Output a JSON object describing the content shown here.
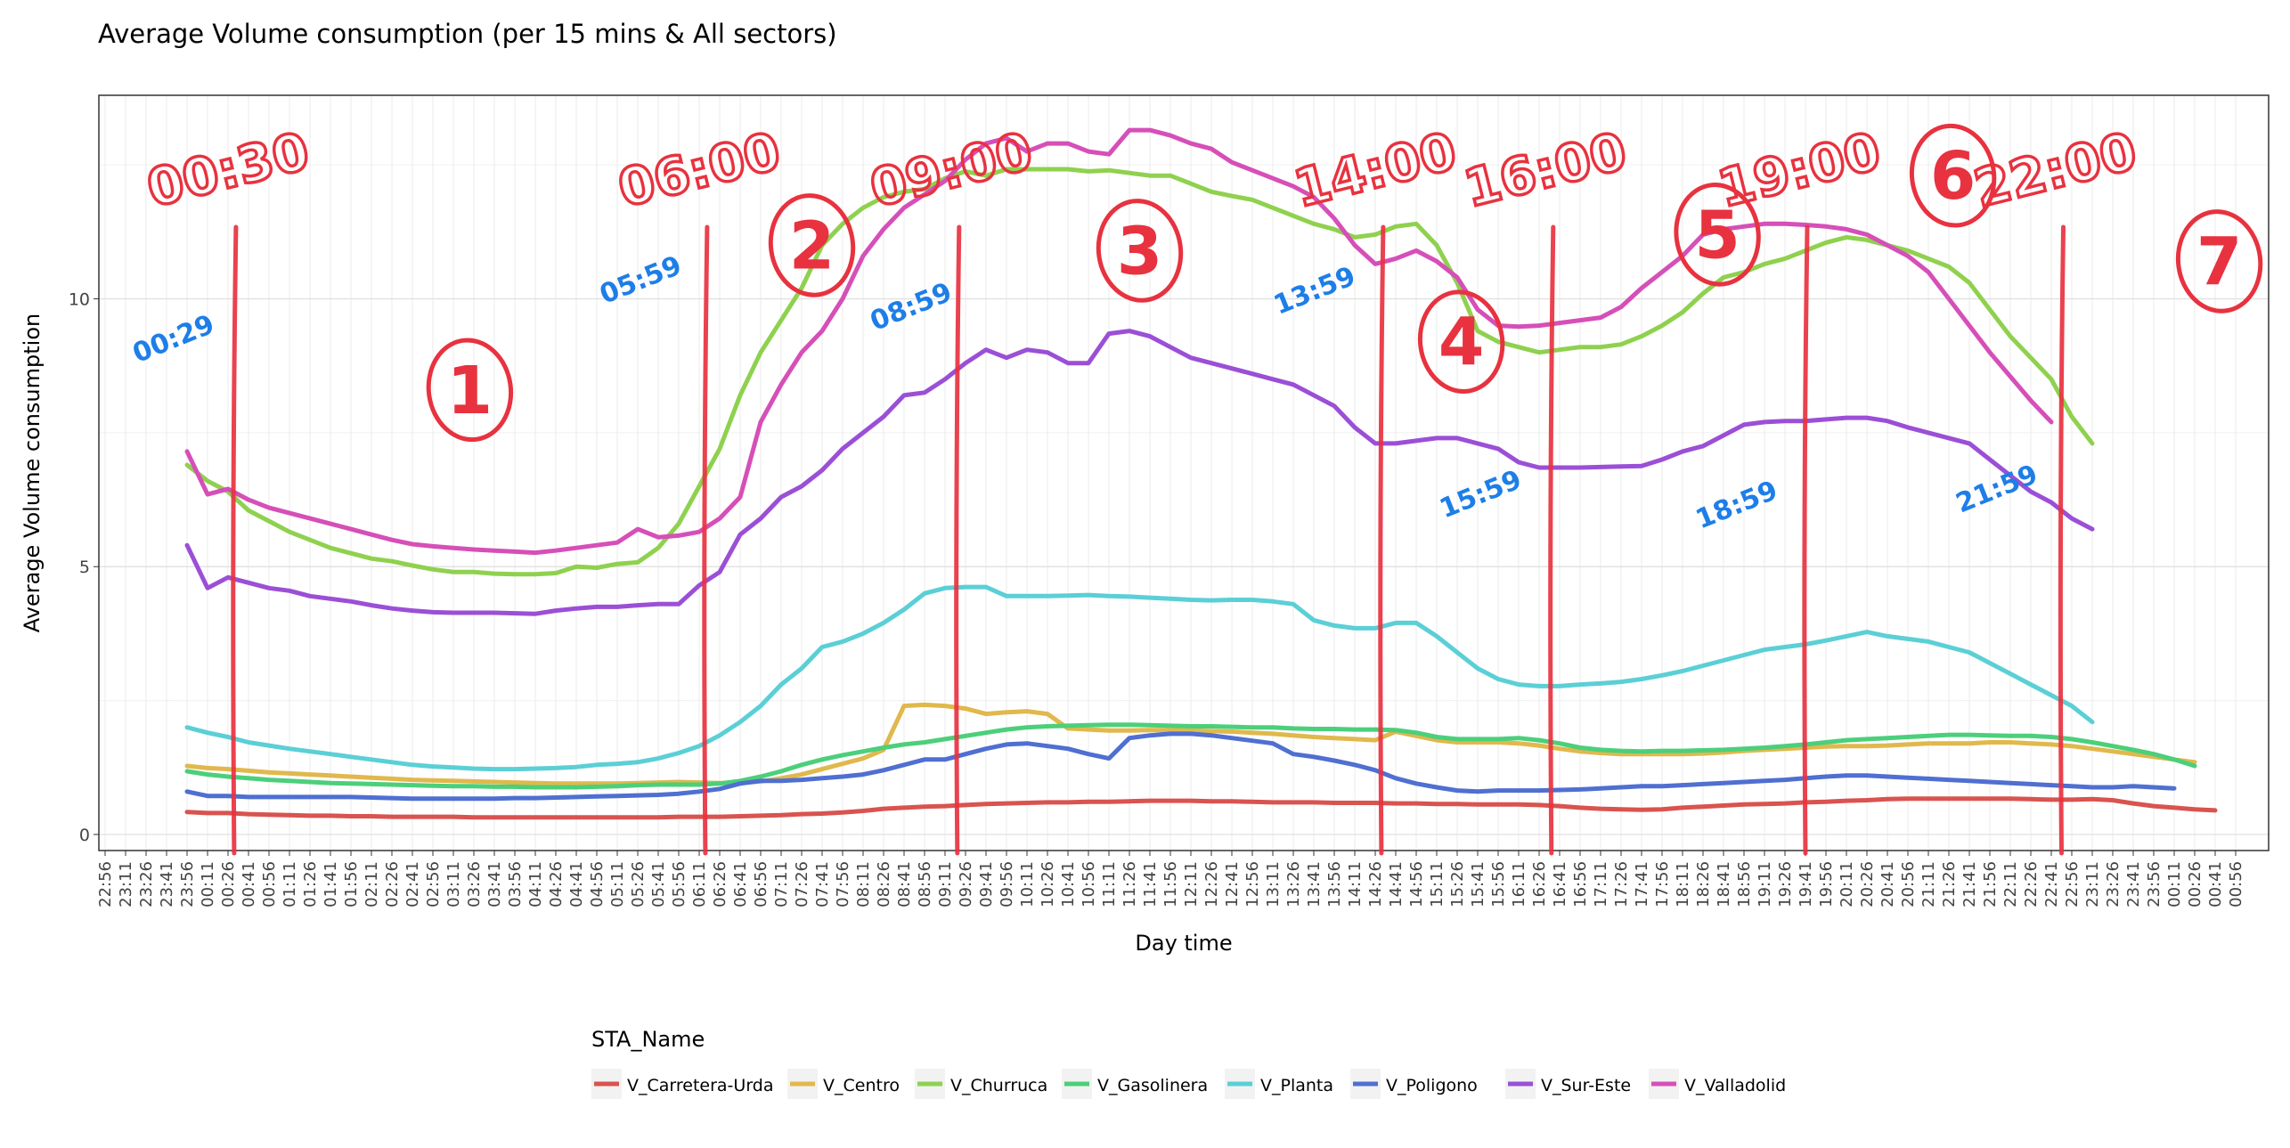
{
  "chart_data": {
    "type": "line",
    "title": "Average Volume consumption (per 15 mins & All sectors)",
    "xlabel": "Day time",
    "ylabel": "Average Volume consumption",
    "ylim": [
      -0.3,
      13.8
    ],
    "yticks": [
      0,
      5,
      10
    ],
    "grid": true,
    "legend_title": "STA_Name",
    "legend_position": "bottom",
    "x_ticks": [
      "22:56",
      "23:11",
      "23:26",
      "23:41",
      "23:56",
      "00:11",
      "00:26",
      "00:41",
      "00:56",
      "01:11",
      "01:26",
      "01:41",
      "01:56",
      "02:11",
      "02:26",
      "02:41",
      "02:56",
      "03:11",
      "03:26",
      "03:41",
      "03:56",
      "04:11",
      "04:26",
      "04:41",
      "04:56",
      "05:11",
      "05:26",
      "05:41",
      "05:56",
      "06:11",
      "06:26",
      "06:41",
      "06:56",
      "07:11",
      "07:26",
      "07:41",
      "07:56",
      "08:11",
      "08:26",
      "08:41",
      "08:56",
      "09:11",
      "09:26",
      "09:41",
      "09:56",
      "10:11",
      "10:26",
      "10:41",
      "10:56",
      "11:11",
      "11:26",
      "11:41",
      "11:56",
      "12:11",
      "12:26",
      "12:41",
      "12:56",
      "13:11",
      "13:26",
      "13:41",
      "13:56",
      "14:11",
      "14:26",
      "14:41",
      "14:56",
      "15:11",
      "15:26",
      "15:41",
      "15:56",
      "16:11",
      "16:26",
      "16:41",
      "16:56",
      "17:11",
      "17:26",
      "17:41",
      "17:56",
      "18:11",
      "18:26",
      "18:41",
      "18:56",
      "19:11",
      "19:26",
      "19:41",
      "19:56",
      "20:11",
      "20:26",
      "20:41",
      "20:56",
      "21:11",
      "21:26",
      "21:41",
      "21:56",
      "22:11",
      "22:26",
      "22:41",
      "22:56",
      "23:11",
      "23:26",
      "23:41",
      "23:56",
      "00:11",
      "00:26",
      "00:41",
      "00:56"
    ],
    "series_start_index": 4,
    "series": [
      {
        "name": "V_Carretera-Urda",
        "color": "#d9534f",
        "values": [
          0.42,
          0.4,
          0.4,
          0.38,
          0.37,
          0.36,
          0.35,
          0.35,
          0.34,
          0.34,
          0.33,
          0.33,
          0.33,
          0.33,
          0.32,
          0.32,
          0.32,
          0.32,
          0.32,
          0.32,
          0.32,
          0.32,
          0.32,
          0.32,
          0.33,
          0.33,
          0.33,
          0.34,
          0.35,
          0.36,
          0.38,
          0.39,
          0.41,
          0.44,
          0.48,
          0.5,
          0.52,
          0.53,
          0.55,
          0.57,
          0.58,
          0.59,
          0.6,
          0.6,
          0.61,
          0.61,
          0.62,
          0.63,
          0.63,
          0.63,
          0.62,
          0.62,
          0.61,
          0.6,
          0.6,
          0.6,
          0.59,
          0.59,
          0.59,
          0.58,
          0.58,
          0.57,
          0.57,
          0.56,
          0.56,
          0.56,
          0.55,
          0.53,
          0.5,
          0.48,
          0.47,
          0.46,
          0.47,
          0.5,
          0.52,
          0.54,
          0.56,
          0.57,
          0.58,
          0.6,
          0.61,
          0.63,
          0.64,
          0.66,
          0.67,
          0.67,
          0.67,
          0.67,
          0.67,
          0.67,
          0.66,
          0.65,
          0.65,
          0.66,
          0.64,
          0.58,
          0.53,
          0.5,
          0.47,
          0.45
        ]
      },
      {
        "name": "V_Centro",
        "color": "#e0b84c",
        "values": [
          1.28,
          1.24,
          1.22,
          1.19,
          1.16,
          1.14,
          1.12,
          1.1,
          1.08,
          1.06,
          1.04,
          1.02,
          1.01,
          1.0,
          0.99,
          0.98,
          0.97,
          0.96,
          0.95,
          0.95,
          0.95,
          0.95,
          0.96,
          0.97,
          0.98,
          0.97,
          0.96,
          0.96,
          0.99,
          1.05,
          1.12,
          1.22,
          1.32,
          1.42,
          1.58,
          2.4,
          2.42,
          2.4,
          2.35,
          2.25,
          2.28,
          2.3,
          2.25,
          1.98,
          1.96,
          1.94,
          1.94,
          1.95,
          1.95,
          1.94,
          1.93,
          1.92,
          1.9,
          1.88,
          1.85,
          1.82,
          1.8,
          1.78,
          1.76,
          1.92,
          1.84,
          1.76,
          1.72,
          1.72,
          1.72,
          1.7,
          1.66,
          1.6,
          1.55,
          1.52,
          1.5,
          1.5,
          1.5,
          1.5,
          1.51,
          1.53,
          1.56,
          1.58,
          1.6,
          1.62,
          1.64,
          1.65,
          1.65,
          1.66,
          1.68,
          1.7,
          1.7,
          1.7,
          1.72,
          1.72,
          1.7,
          1.68,
          1.65,
          1.6,
          1.55,
          1.5,
          1.45,
          1.4,
          1.35
        ]
      },
      {
        "name": "V_Churruca",
        "color": "#8fd14f",
        "values": [
          6.9,
          6.6,
          6.4,
          6.05,
          5.85,
          5.65,
          5.5,
          5.35,
          5.25,
          5.15,
          5.1,
          5.02,
          4.95,
          4.9,
          4.9,
          4.87,
          4.86,
          4.86,
          4.88,
          5.0,
          4.98,
          5.05,
          5.08,
          5.35,
          5.8,
          6.5,
          7.2,
          8.2,
          9.0,
          9.6,
          10.2,
          11.0,
          11.4,
          11.7,
          11.9,
          12.0,
          12.05,
          12.25,
          12.38,
          12.3,
          12.42,
          12.42,
          12.42,
          12.42,
          12.38,
          12.4,
          12.35,
          12.3,
          12.3,
          12.15,
          12.0,
          11.92,
          11.85,
          11.7,
          11.55,
          11.4,
          11.3,
          11.15,
          11.2,
          11.35,
          11.4,
          11.0,
          10.3,
          9.4,
          9.2,
          9.1,
          9.0,
          9.05,
          9.1,
          9.1,
          9.15,
          9.3,
          9.5,
          9.75,
          10.1,
          10.4,
          10.5,
          10.65,
          10.75,
          10.9,
          11.05,
          11.15,
          11.1,
          11.0,
          10.9,
          10.75,
          10.6,
          10.3,
          9.8,
          9.3,
          8.9,
          8.5,
          7.8,
          7.3
        ]
      },
      {
        "name": "V_Gasolinera",
        "color": "#4ccf7a",
        "values": [
          1.18,
          1.12,
          1.08,
          1.05,
          1.02,
          1.0,
          0.98,
          0.96,
          0.95,
          0.94,
          0.93,
          0.92,
          0.91,
          0.9,
          0.9,
          0.89,
          0.89,
          0.88,
          0.88,
          0.88,
          0.89,
          0.9,
          0.92,
          0.93,
          0.93,
          0.93,
          0.95,
          1.0,
          1.08,
          1.18,
          1.3,
          1.4,
          1.48,
          1.55,
          1.62,
          1.68,
          1.72,
          1.78,
          1.84,
          1.9,
          1.96,
          2.0,
          2.02,
          2.03,
          2.04,
          2.05,
          2.05,
          2.04,
          2.03,
          2.02,
          2.02,
          2.01,
          2.0,
          2.0,
          1.98,
          1.97,
          1.97,
          1.96,
          1.96,
          1.95,
          1.9,
          1.82,
          1.78,
          1.78,
          1.78,
          1.8,
          1.76,
          1.7,
          1.62,
          1.58,
          1.56,
          1.55,
          1.56,
          1.56,
          1.57,
          1.58,
          1.6,
          1.62,
          1.65,
          1.68,
          1.72,
          1.76,
          1.78,
          1.8,
          1.82,
          1.84,
          1.86,
          1.86,
          1.85,
          1.84,
          1.84,
          1.82,
          1.78,
          1.72,
          1.65,
          1.58,
          1.5,
          1.4,
          1.28
        ]
      },
      {
        "name": "V_Planta",
        "color": "#5bcfd6",
        "values": [
          2.0,
          1.9,
          1.82,
          1.72,
          1.66,
          1.6,
          1.55,
          1.5,
          1.45,
          1.4,
          1.35,
          1.3,
          1.27,
          1.25,
          1.23,
          1.22,
          1.22,
          1.23,
          1.24,
          1.26,
          1.3,
          1.32,
          1.35,
          1.42,
          1.52,
          1.65,
          1.85,
          2.1,
          2.4,
          2.8,
          3.1,
          3.5,
          3.6,
          3.75,
          3.95,
          4.2,
          4.5,
          4.6,
          4.62,
          4.62,
          4.45,
          4.45,
          4.45,
          4.46,
          4.47,
          4.45,
          4.44,
          4.42,
          4.4,
          4.38,
          4.37,
          4.38,
          4.38,
          4.35,
          4.3,
          4.0,
          3.9,
          3.85,
          3.85,
          3.95,
          3.95,
          3.7,
          3.4,
          3.1,
          2.9,
          2.8,
          2.77,
          2.77,
          2.8,
          2.82,
          2.85,
          2.9,
          2.97,
          3.05,
          3.15,
          3.25,
          3.35,
          3.45,
          3.5,
          3.55,
          3.62,
          3.7,
          3.78,
          3.7,
          3.65,
          3.6,
          3.5,
          3.4,
          3.2,
          3.0,
          2.8,
          2.6,
          2.4,
          2.1
        ]
      },
      {
        "name": "V_Poligono",
        "color": "#4f6fd1",
        "values": [
          0.8,
          0.72,
          0.72,
          0.7,
          0.7,
          0.7,
          0.7,
          0.7,
          0.7,
          0.69,
          0.68,
          0.67,
          0.67,
          0.67,
          0.67,
          0.67,
          0.68,
          0.68,
          0.69,
          0.7,
          0.71,
          0.72,
          0.73,
          0.74,
          0.76,
          0.8,
          0.85,
          0.95,
          1.0,
          1.0,
          1.02,
          1.05,
          1.08,
          1.12,
          1.2,
          1.3,
          1.4,
          1.4,
          1.5,
          1.6,
          1.68,
          1.7,
          1.65,
          1.6,
          1.5,
          1.42,
          1.8,
          1.85,
          1.88,
          1.88,
          1.85,
          1.8,
          1.75,
          1.7,
          1.5,
          1.45,
          1.38,
          1.3,
          1.2,
          1.05,
          0.95,
          0.88,
          0.82,
          0.8,
          0.82,
          0.82,
          0.82,
          0.83,
          0.84,
          0.86,
          0.88,
          0.9,
          0.9,
          0.92,
          0.94,
          0.96,
          0.98,
          1.0,
          1.02,
          1.05,
          1.08,
          1.1,
          1.1,
          1.08,
          1.06,
          1.04,
          1.02,
          1.0,
          0.98,
          0.96,
          0.94,
          0.92,
          0.9,
          0.88,
          0.88,
          0.9,
          0.88,
          0.86
        ]
      },
      {
        "name": "V_Sur-Este",
        "color": "#9b4fd6",
        "values": [
          5.4,
          4.6,
          4.8,
          4.7,
          4.6,
          4.55,
          4.45,
          4.4,
          4.35,
          4.28,
          4.22,
          4.18,
          4.15,
          4.14,
          4.14,
          4.14,
          4.13,
          4.12,
          4.18,
          4.22,
          4.25,
          4.25,
          4.28,
          4.3,
          4.3,
          4.65,
          4.9,
          5.6,
          5.9,
          6.3,
          6.5,
          6.8,
          7.2,
          7.5,
          7.8,
          8.2,
          8.25,
          8.5,
          8.8,
          9.05,
          8.9,
          9.05,
          9.0,
          8.8,
          8.8,
          9.35,
          9.4,
          9.3,
          9.1,
          8.9,
          8.8,
          8.7,
          8.6,
          8.5,
          8.4,
          8.2,
          8.0,
          7.6,
          7.3,
          7.3,
          7.35,
          7.4,
          7.4,
          7.3,
          7.2,
          6.95,
          6.85,
          6.85,
          6.85,
          6.86,
          6.87,
          6.88,
          7.0,
          7.15,
          7.25,
          7.45,
          7.65,
          7.7,
          7.72,
          7.72,
          7.75,
          7.78,
          7.78,
          7.72,
          7.6,
          7.5,
          7.4,
          7.3,
          7.0,
          6.7,
          6.4,
          6.2,
          5.9,
          5.7
        ]
      },
      {
        "name": "V_Valladolid",
        "color": "#d64fb8",
        "values": [
          7.15,
          6.35,
          6.45,
          6.25,
          6.1,
          6.0,
          5.9,
          5.8,
          5.7,
          5.6,
          5.5,
          5.42,
          5.38,
          5.35,
          5.32,
          5.3,
          5.28,
          5.26,
          5.3,
          5.35,
          5.4,
          5.45,
          5.7,
          5.55,
          5.58,
          5.65,
          5.9,
          6.3,
          7.7,
          8.4,
          9.0,
          9.4,
          10.0,
          10.8,
          11.3,
          11.7,
          11.95,
          12.2,
          12.6,
          12.9,
          13.0,
          12.75,
          12.9,
          12.9,
          12.75,
          12.7,
          13.15,
          13.15,
          13.05,
          12.9,
          12.8,
          12.55,
          12.4,
          12.25,
          12.1,
          11.9,
          11.5,
          11.0,
          10.65,
          10.75,
          10.9,
          10.7,
          10.4,
          9.8,
          9.5,
          9.48,
          9.5,
          9.55,
          9.6,
          9.65,
          9.85,
          10.2,
          10.5,
          10.8,
          11.2,
          11.3,
          11.35,
          11.4,
          11.4,
          11.38,
          11.35,
          11.3,
          11.2,
          11.0,
          10.8,
          10.5,
          10.0,
          9.5,
          9.0,
          8.55,
          8.1,
          7.7
        ]
      }
    ],
    "annotations": {
      "boundaries": [
        {
          "label": "00:30",
          "x_index": 6.3
        },
        {
          "label": "06:00",
          "x_index": 29.3
        },
        {
          "label": "09:00",
          "x_index": 41.6
        },
        {
          "label": "14:00",
          "x_index": 62.3
        },
        {
          "label": "16:00",
          "x_index": 70.6
        },
        {
          "label": "19:00",
          "x_index": 83.0
        },
        {
          "label": "22:00",
          "x_index": 95.5
        }
      ],
      "zones": [
        {
          "label": "1",
          "x_index": 17.8,
          "y": 8.3
        },
        {
          "label": "2",
          "x_index": 34.5,
          "y": 11.0
        },
        {
          "label": "3",
          "x_index": 50.5,
          "y": 10.9
        },
        {
          "label": "4",
          "x_index": 66.2,
          "y": 9.2
        },
        {
          "label": "5",
          "x_index": 78.7,
          "y": 11.2
        },
        {
          "label": "6",
          "x_index": 90.2,
          "y": 12.3
        },
        {
          "label": "7",
          "x_index": 103.2,
          "y": 10.7
        }
      ],
      "times": [
        {
          "label": "00:29",
          "x_index": 3.5,
          "y": 9.1
        },
        {
          "label": "05:59",
          "x_index": 26.3,
          "y": 10.2
        },
        {
          "label": "08:59",
          "x_index": 39.5,
          "y": 9.7
        },
        {
          "label": "13:59",
          "x_index": 59.2,
          "y": 10.0
        },
        {
          "label": "15:59",
          "x_index": 67.3,
          "y": 6.2
        },
        {
          "label": "18:59",
          "x_index": 79.8,
          "y": 6.0
        },
        {
          "label": "21:59",
          "x_index": 92.5,
          "y": 6.3
        }
      ],
      "boundary_color": "#e8323f",
      "time_color": "#1d7ee8"
    }
  }
}
